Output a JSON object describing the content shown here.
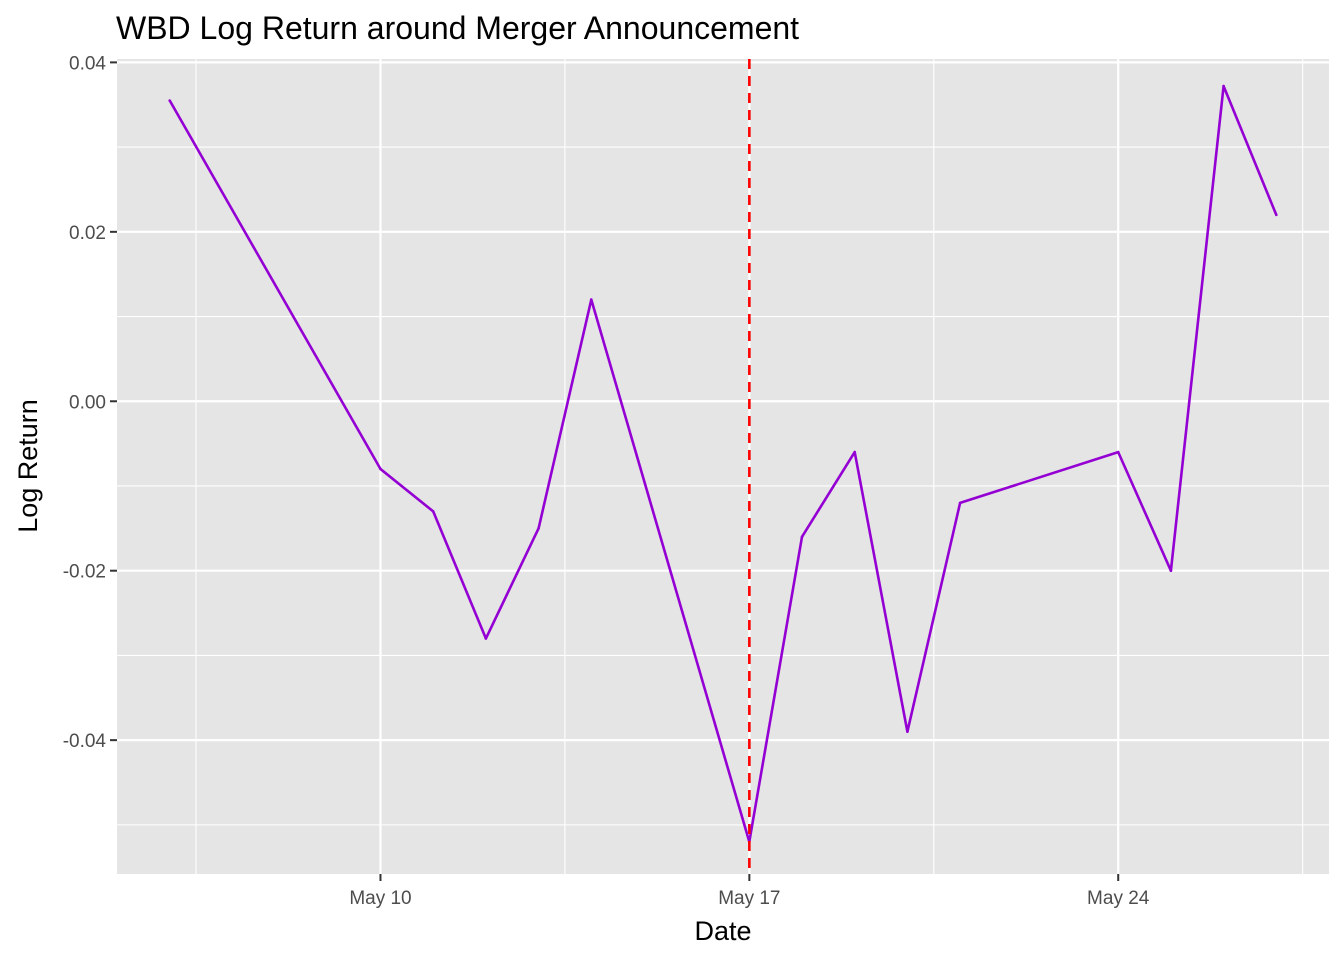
{
  "chart_data": {
    "type": "line",
    "title": "WBD Log Return around Merger Announcement",
    "xlabel": "Date",
    "ylabel": "Log Return",
    "x_tick_labels": [
      {
        "date": "2022-05-10",
        "label": "May 10"
      },
      {
        "date": "2022-05-17",
        "label": "May 17"
      },
      {
        "date": "2022-05-24",
        "label": "May 24"
      }
    ],
    "y_tick_labels": [
      "-0.04",
      "-0.02",
      "0.00",
      "0.02",
      "0.04"
    ],
    "y_ticks": [
      -0.04,
      -0.02,
      0.0,
      0.02,
      0.04
    ],
    "xlim": [
      "2022-05-05",
      "2022-05-28"
    ],
    "ylim": [
      -0.0558,
      0.0404
    ],
    "grid": true,
    "series": [
      {
        "color": "#9400D3",
        "points": [
          {
            "x": "2022-05-06",
            "y": 0.0355
          },
          {
            "x": "2022-05-10",
            "y": -0.008
          },
          {
            "x": "2022-05-11",
            "y": -0.013
          },
          {
            "x": "2022-05-12",
            "y": -0.028
          },
          {
            "x": "2022-05-13",
            "y": -0.015
          },
          {
            "x": "2022-05-14",
            "y": 0.012
          },
          {
            "x": "2022-05-17",
            "y": -0.052
          },
          {
            "x": "2022-05-18",
            "y": -0.016
          },
          {
            "x": "2022-05-19",
            "y": -0.006
          },
          {
            "x": "2022-05-20",
            "y": -0.039
          },
          {
            "x": "2022-05-21",
            "y": -0.012
          },
          {
            "x": "2022-05-24",
            "y": -0.006
          },
          {
            "x": "2022-05-25",
            "y": -0.02
          },
          {
            "x": "2022-05-26",
            "y": 0.0372
          },
          {
            "x": "2022-05-27",
            "y": 0.022
          }
        ]
      }
    ],
    "vline": {
      "x": "2022-05-17",
      "color": "#FF0000",
      "style": "dashed"
    },
    "colors": {
      "panel": "#E5E5E5",
      "grid": "#FFFFFF",
      "tick": "#333333"
    }
  }
}
